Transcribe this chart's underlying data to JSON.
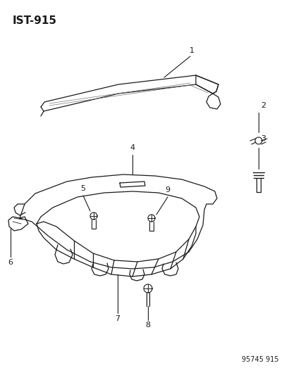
{
  "title": "IST-915",
  "bg_color": "#ffffff",
  "line_color": "#1a1a1a",
  "watermark": "95745 915",
  "figsize": [
    4.14,
    5.33
  ],
  "dpi": 100
}
